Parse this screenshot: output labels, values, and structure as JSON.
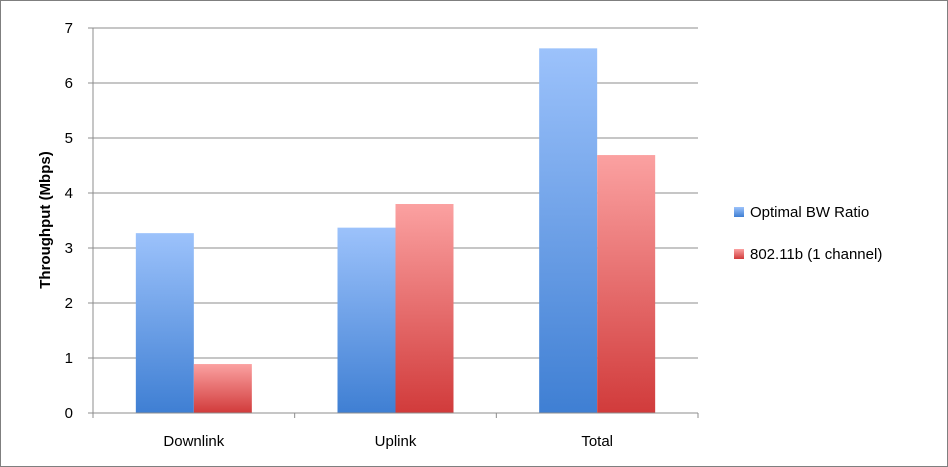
{
  "chart_data": {
    "type": "bar",
    "categories": [
      "Downlink",
      "Uplink",
      "Total"
    ],
    "series": [
      {
        "name": "Optimal BW Ratio",
        "values": [
          3.27,
          3.37,
          6.63
        ],
        "color": "#4a86d4"
      },
      {
        "name": "802.11b (1 channel)",
        "values": [
          0.89,
          3.8,
          4.69
        ],
        "color": "#d63e3e"
      }
    ],
    "title": "",
    "xlabel": "",
    "ylabel": "Throughput (Mbps)",
    "ylim": [
      0,
      7
    ],
    "yticks": [
      "0",
      "1",
      "2",
      "3",
      "4",
      "5",
      "6",
      "7"
    ],
    "grid": true,
    "legend_position": "right"
  }
}
